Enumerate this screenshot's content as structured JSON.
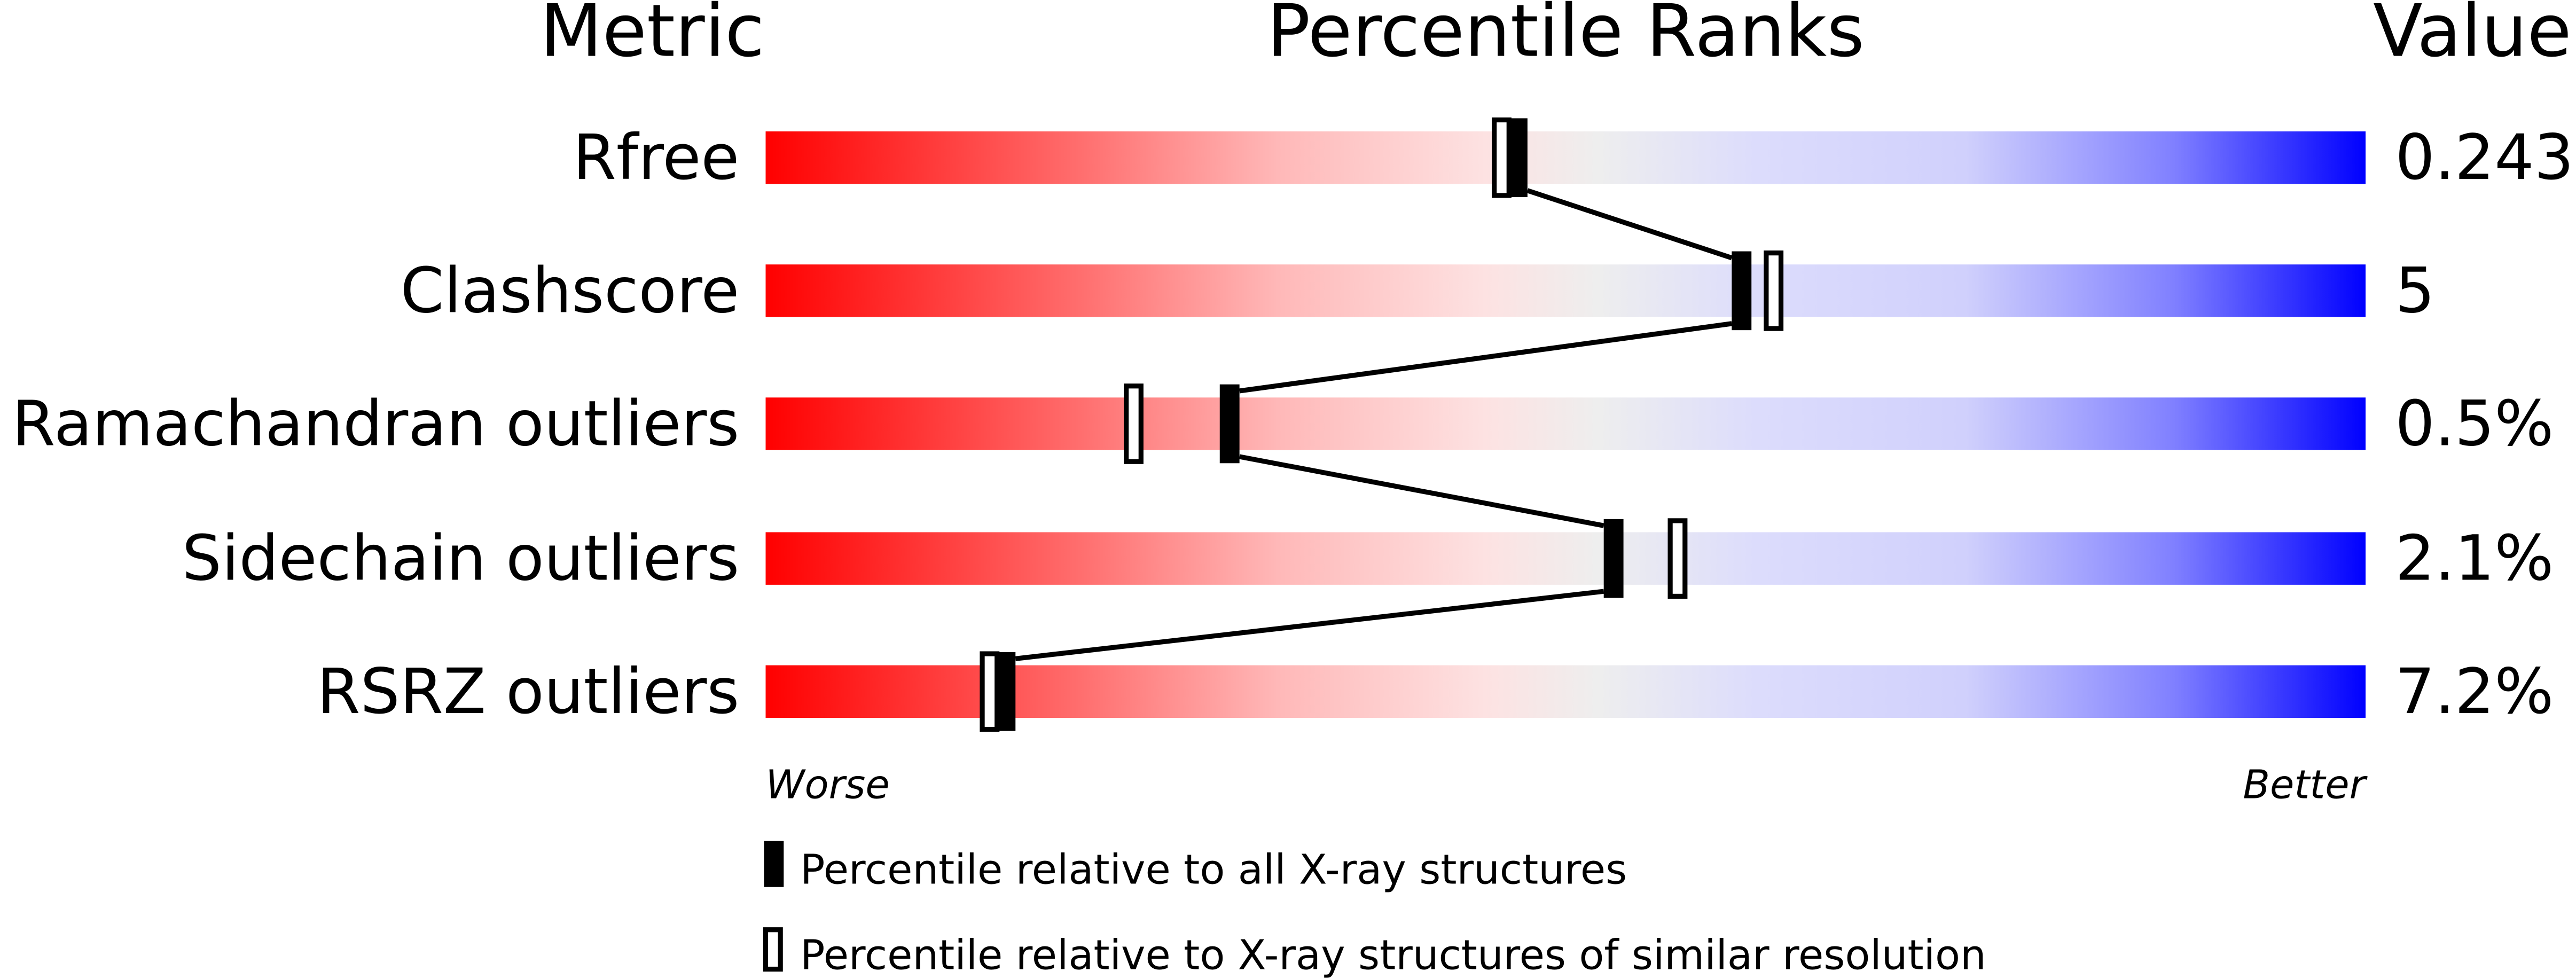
{
  "chart_data": {
    "type": "percentile-ranks",
    "headers": {
      "metric": "Metric",
      "ranks": "Percentile Ranks",
      "value": "Value"
    },
    "xlim": [
      0,
      100
    ],
    "axis_labels": {
      "left": "Worse",
      "right": "Better"
    },
    "colors": {
      "worse": "#ff0000",
      "middle": "#eeeeee",
      "better": "#0000ff",
      "marker": "#000000"
    },
    "metrics": [
      {
        "name": "Rfree",
        "value": "0.243",
        "percentile_all": 47,
        "percentile_similar": 46
      },
      {
        "name": "Clashscore",
        "value": "5",
        "percentile_all": 61,
        "percentile_similar": 63
      },
      {
        "name": "Ramachandran outliers",
        "value": "0.5%",
        "percentile_all": 29,
        "percentile_similar": 23
      },
      {
        "name": "Sidechain outliers",
        "value": "2.1%",
        "percentile_all": 53,
        "percentile_similar": 57
      },
      {
        "name": "RSRZ outliers",
        "value": "7.2%",
        "percentile_all": 15,
        "percentile_similar": 14
      }
    ],
    "legend": [
      {
        "marker": "filled",
        "label": "Percentile relative to all X-ray structures"
      },
      {
        "marker": "open",
        "label": "Percentile relative to X-ray structures of similar resolution"
      }
    ]
  }
}
